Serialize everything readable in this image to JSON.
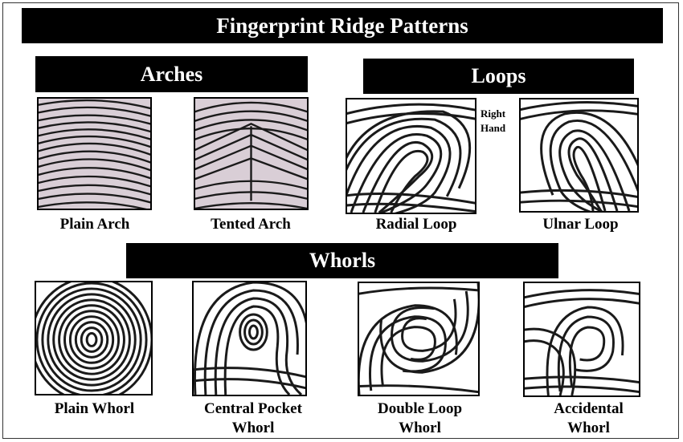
{
  "title": "Fingerprint Ridge Patterns",
  "sections": {
    "arches": "Arches",
    "loops": "Loops",
    "whorls": "Whorls"
  },
  "note": {
    "line1": "Right",
    "line2": "Hand"
  },
  "prints": {
    "plain_arch": {
      "line1": "Plain Arch",
      "line2": ""
    },
    "tented_arch": {
      "line1": "Tented Arch",
      "line2": ""
    },
    "radial_loop": {
      "line1": "Radial Loop",
      "line2": ""
    },
    "ulnar_loop": {
      "line1": "Ulnar Loop",
      "line2": ""
    },
    "plain_whorl": {
      "line1": "Plain Whorl",
      "line2": ""
    },
    "central_pocket_whorl": {
      "line1": "Central Pocket",
      "line2": "Whorl"
    },
    "double_loop_whorl": {
      "line1": "Double Loop",
      "line2": "Whorl"
    },
    "accidental_whorl": {
      "line1": "Accidental",
      "line2": "Whorl"
    }
  },
  "colors": {
    "bar": "#000000",
    "bar_text": "#ffffff",
    "arch_bg": "#d9ced6",
    "ridge": "#1a1a1a"
  }
}
